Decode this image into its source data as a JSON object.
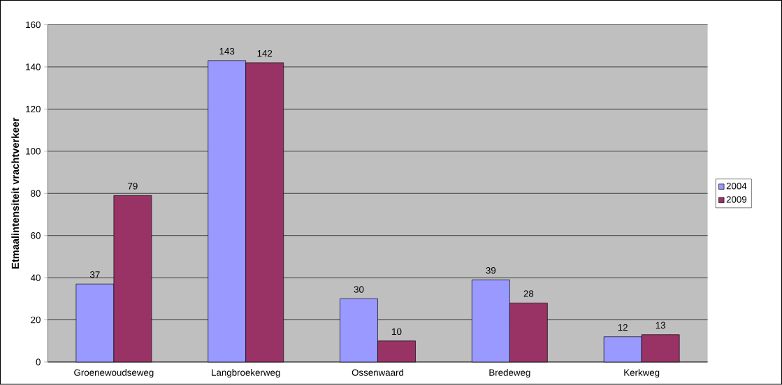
{
  "chart_data": {
    "type": "bar",
    "ylabel": "Etmaalintensiteit vrachtverkeer",
    "categories": [
      "Groenewoudseweg",
      "Langbroekerweg",
      "Ossenwaard",
      "Bredeweg",
      "Kerkweg"
    ],
    "series": [
      {
        "name": "2004",
        "color": "#9999ff",
        "values": [
          37,
          143,
          30,
          39,
          12
        ]
      },
      {
        "name": "2009",
        "color": "#993366",
        "values": [
          79,
          142,
          10,
          28,
          13
        ]
      }
    ],
    "ylim": [
      0,
      160
    ],
    "yticks": [
      0,
      20,
      40,
      60,
      80,
      100,
      120,
      140,
      160
    ],
    "grid": "y",
    "legend": "right",
    "data_labels": true
  }
}
